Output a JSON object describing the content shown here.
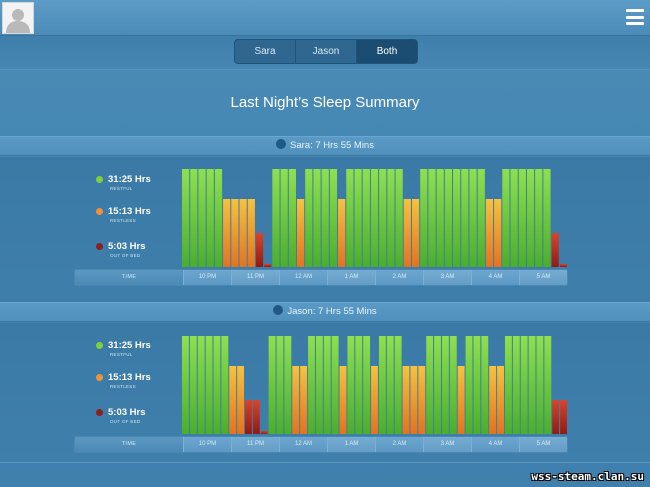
{
  "header": {
    "avatar_icon": "user-silhouette-icon",
    "menu_icon": "hamburger-menu-icon"
  },
  "toggle": {
    "options": [
      "Sara",
      "Jason",
      "Both"
    ],
    "selected": "Both"
  },
  "title": "Last Night’s Sleep Summary",
  "colors": {
    "restful": "#6ccf3e",
    "restless": "#f09a2b",
    "out_of_bed": "#b8281e"
  },
  "sections": [
    {
      "person": "Sara",
      "summary": "Sara: 7 Hrs 55 Mins",
      "legend": [
        {
          "value": "31:25 Hrs",
          "label": "RESTFUL",
          "color": "#7ed13c"
        },
        {
          "value": "15:13 Hrs",
          "label": "RESTLESS",
          "color": "#f0913b"
        },
        {
          "value": "5:03 Hrs",
          "label": "OUT OF BED",
          "color": "#8c1f1f"
        }
      ],
      "axis": [
        "TIME",
        "10 PM",
        "11 PM",
        "12 AM",
        "1 AM",
        "2 AM",
        "3 AM",
        "4 AM",
        "5 AM"
      ],
      "bars": [
        3,
        3,
        3,
        3,
        3,
        2,
        2,
        2,
        2,
        1,
        0,
        3,
        3,
        3,
        2,
        3,
        3,
        3,
        3,
        2,
        3,
        3,
        3,
        3,
        3,
        3,
        3,
        2,
        2,
        3,
        3,
        3,
        3,
        3,
        3,
        3,
        3,
        2,
        2,
        3,
        3,
        3,
        3,
        3,
        3,
        1,
        0
      ]
    },
    {
      "person": "Jason",
      "summary": "Jason: 7 Hrs 55 Mins",
      "legend": [
        {
          "value": "31:25 Hrs",
          "label": "RESTFUL",
          "color": "#7ed13c"
        },
        {
          "value": "15:13 Hrs",
          "label": "RESTLESS",
          "color": "#f0913b"
        },
        {
          "value": "5:03 Hrs",
          "label": "OUT OF BED",
          "color": "#8c1f1f"
        }
      ],
      "axis": [
        "TIME",
        "10 PM",
        "11 PM",
        "12 AM",
        "1 AM",
        "2 AM",
        "3 AM",
        "4 AM",
        "5 AM"
      ],
      "bars": [
        3,
        3,
        3,
        3,
        3,
        3,
        2,
        2,
        1,
        1,
        0,
        3,
        3,
        3,
        2,
        2,
        3,
        3,
        3,
        3,
        2,
        3,
        3,
        3,
        2,
        3,
        3,
        3,
        2,
        2,
        2,
        3,
        3,
        3,
        3,
        2,
        3,
        3,
        3,
        2,
        2,
        3,
        3,
        3,
        3,
        3,
        3,
        1,
        1
      ]
    }
  ],
  "watermark": "wss-steam.clan.su"
}
